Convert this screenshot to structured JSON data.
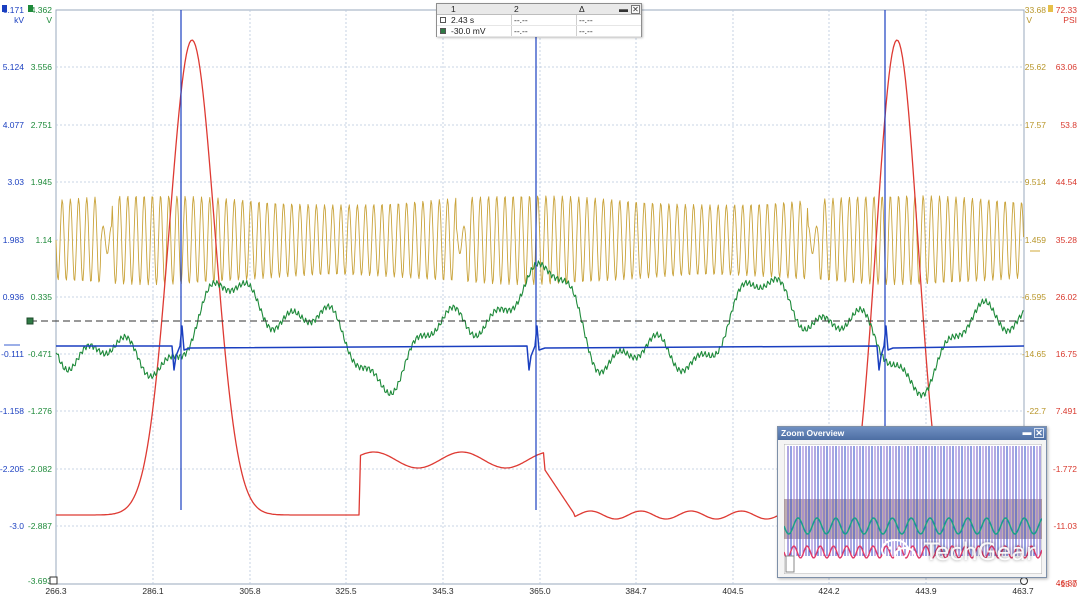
{
  "axes": {
    "x_ticks": [
      "266.3",
      "286.1",
      "305.8",
      "325.5",
      "345.3",
      "365.0",
      "384.7",
      "404.5",
      "424.2",
      "443.9",
      "463.7"
    ],
    "left_blue": {
      "unit": "kV",
      "top": "6.171",
      "ticks": [
        "5.124",
        "4.077",
        "3.03",
        "1.983",
        "0.936",
        "-0.111",
        "-1.158",
        "-2.205",
        "-3.0"
      ],
      "color": "#1a3fc0"
    },
    "left_green": {
      "unit": "V",
      "top": "4.362",
      "ticks": [
        "3.556",
        "2.751",
        "1.945",
        "1.14",
        "0.335",
        "-0.471",
        "-1.276",
        "-2.082",
        "-2.887"
      ],
      "bottom": "-3.693",
      "color": "#1e8a3a"
    },
    "right_olive": {
      "unit": "V",
      "top": "33.68",
      "ticks": [
        "25.62",
        "17.57",
        "9.514",
        "1.459",
        "-6.595",
        "-14.65",
        "-22.7"
      ],
      "color": "#b8962a"
    },
    "right_red": {
      "unit": "PSI",
      "top": "72.33",
      "ticks": [
        "63.06",
        "53.8",
        "44.54",
        "35.28",
        "26.02",
        "16.75",
        "7.491",
        "-1.772",
        "-11.03",
        "-15.0"
      ],
      "bottom": "46.87",
      "color": "#d9392e"
    }
  },
  "readout": {
    "col1": "1",
    "col2": "2",
    "col3": "Δ",
    "row1": {
      "v1": "2.43 s",
      "v2": "--.--",
      "v3": "--.--"
    },
    "row2": {
      "v1": "-30.0 mV",
      "v2": "--.--",
      "v3": "--.--"
    },
    "minimize_label": "▬",
    "close_label": "✕"
  },
  "zoom_overview": {
    "title": "Zoom Overview",
    "minimize_label": "▬",
    "close_label": "✕"
  },
  "watermark": "TechGear",
  "colors": {
    "blue": "#1a3fc0",
    "green": "#1e8a3a",
    "olive": "#c9a33a",
    "red": "#de3a33",
    "grid": "#b9c8dc"
  }
}
